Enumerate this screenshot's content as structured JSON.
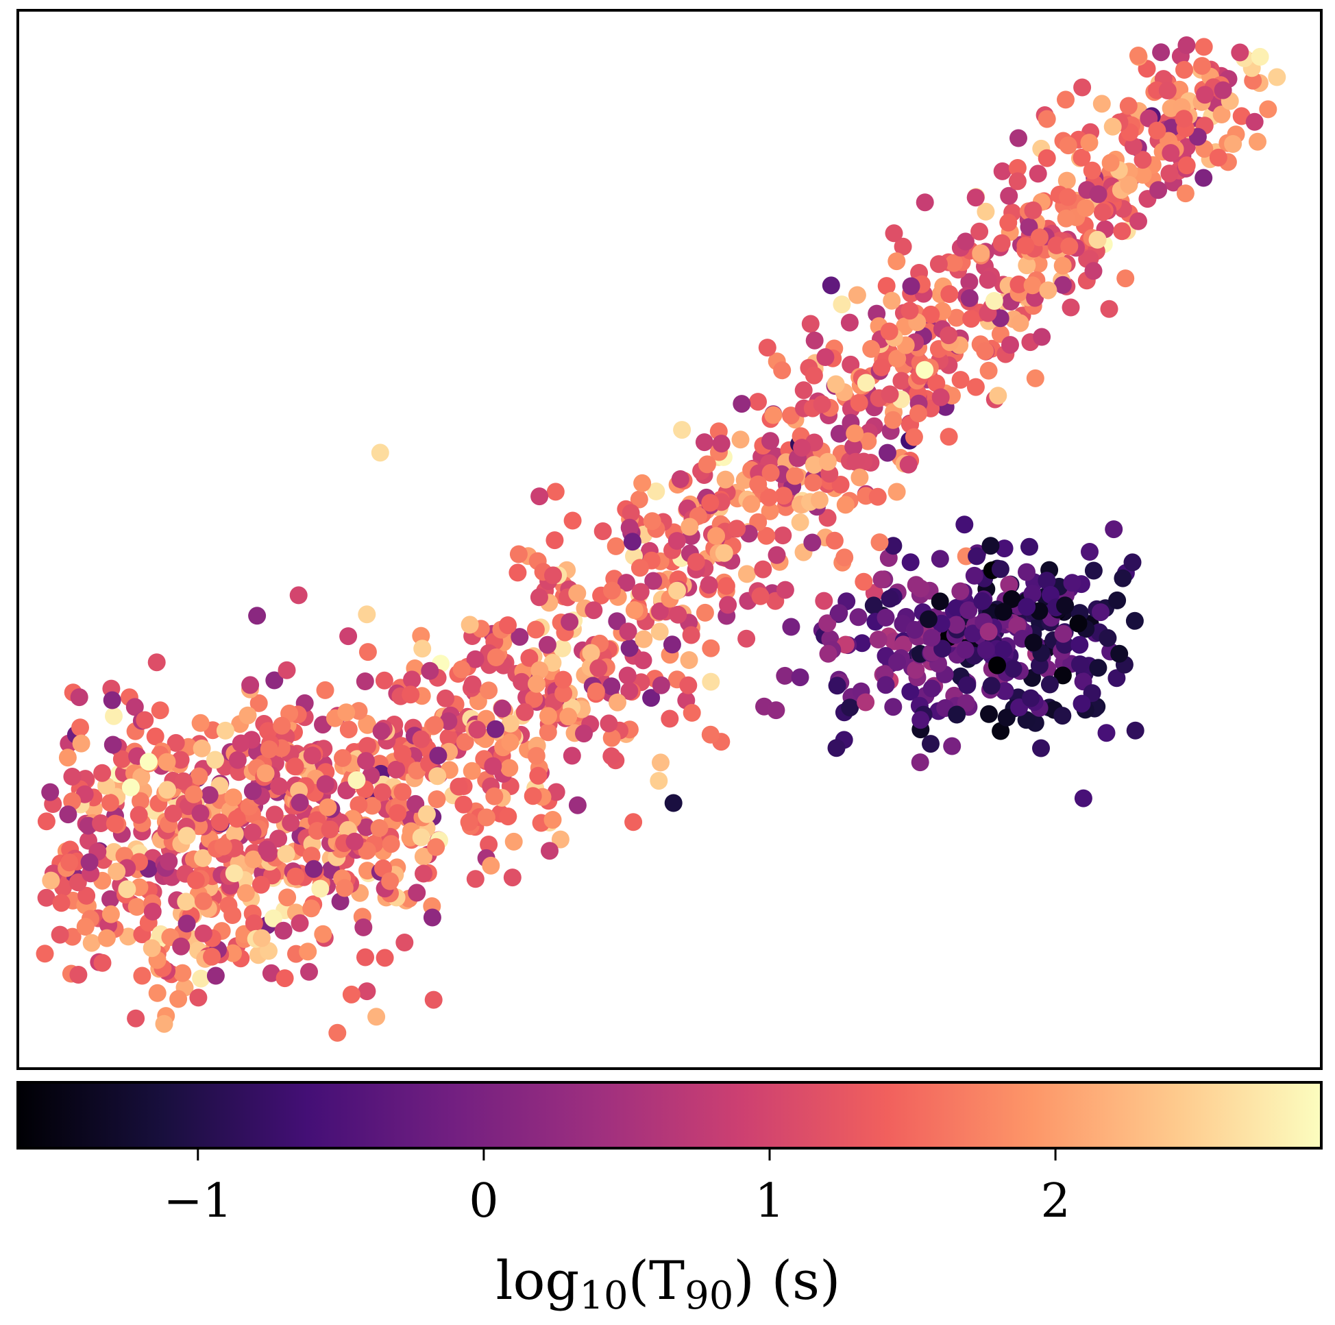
{
  "chart_data": {
    "type": "scatter",
    "title": "",
    "xlabel": "",
    "ylabel": "",
    "axes_ticks_visible": false,
    "colormap": "magma",
    "colormap_stops": [
      "#000004",
      "#180f3d",
      "#440f76",
      "#721f81",
      "#9e2f7f",
      "#cd4071",
      "#f1605d",
      "#fd9668",
      "#feca8d",
      "#fcfdbf"
    ],
    "color_range": [
      -1.63,
      2.93
    ],
    "colorbar": {
      "label_prefix": "log",
      "label_sub1": "10",
      "label_mid": "(T",
      "label_sub2": "90",
      "label_suffix": ") (s)",
      "ticks": [
        {
          "value": -1,
          "label": "−1"
        },
        {
          "value": 0,
          "label": "0"
        },
        {
          "value": 1,
          "label": "1"
        },
        {
          "value": 2,
          "label": "2"
        }
      ]
    },
    "xlim": [
      0,
      100
    ],
    "ylim": [
      0,
      100
    ],
    "generated_points": {
      "count": 1850,
      "seed": 7,
      "main_cloud": {
        "fraction": 0.84,
        "anchors": [
          [
            5,
            20
          ],
          [
            20,
            22
          ],
          [
            35,
            30
          ],
          [
            55,
            52
          ],
          [
            75,
            74
          ],
          [
            94,
            95
          ]
        ],
        "spread": 7.5,
        "color_mean": 1.45,
        "color_sd": 0.6
      },
      "short_cluster": {
        "fraction": 0.16,
        "center": [
          74,
          40
        ],
        "spread": [
          6.5,
          4.2
        ],
        "color_mean": -0.35,
        "color_sd": 0.45
      }
    },
    "points": [
      {
        "x": 95.3,
        "y": 95.6,
        "c": 2.8
      },
      {
        "x": 87.0,
        "y": 90.0,
        "c": -0.4
      },
      {
        "x": 62.4,
        "y": 74.0,
        "c": -0.3
      },
      {
        "x": 27.8,
        "y": 58.2,
        "c": 2.6
      },
      {
        "x": 7.3,
        "y": 30.6,
        "c": 0.3
      },
      {
        "x": 5.5,
        "y": 19.5,
        "c": 0.4
      },
      {
        "x": 50.3,
        "y": 25.1,
        "c": -1.1
      },
      {
        "x": 74.5,
        "y": 33.5,
        "c": -1.4
      },
      {
        "x": 75.4,
        "y": 31.9,
        "c": -1.5
      },
      {
        "x": 79.5,
        "y": 33.9,
        "c": -1.3
      },
      {
        "x": 77.6,
        "y": 49.3,
        "c": -0.7
      },
      {
        "x": 62.8,
        "y": 30.3,
        "c": -0.8
      },
      {
        "x": 31.9,
        "y": 6.5,
        "c": 1.3
      },
      {
        "x": 27.5,
        "y": 4.9,
        "c": 2.2
      }
    ]
  }
}
